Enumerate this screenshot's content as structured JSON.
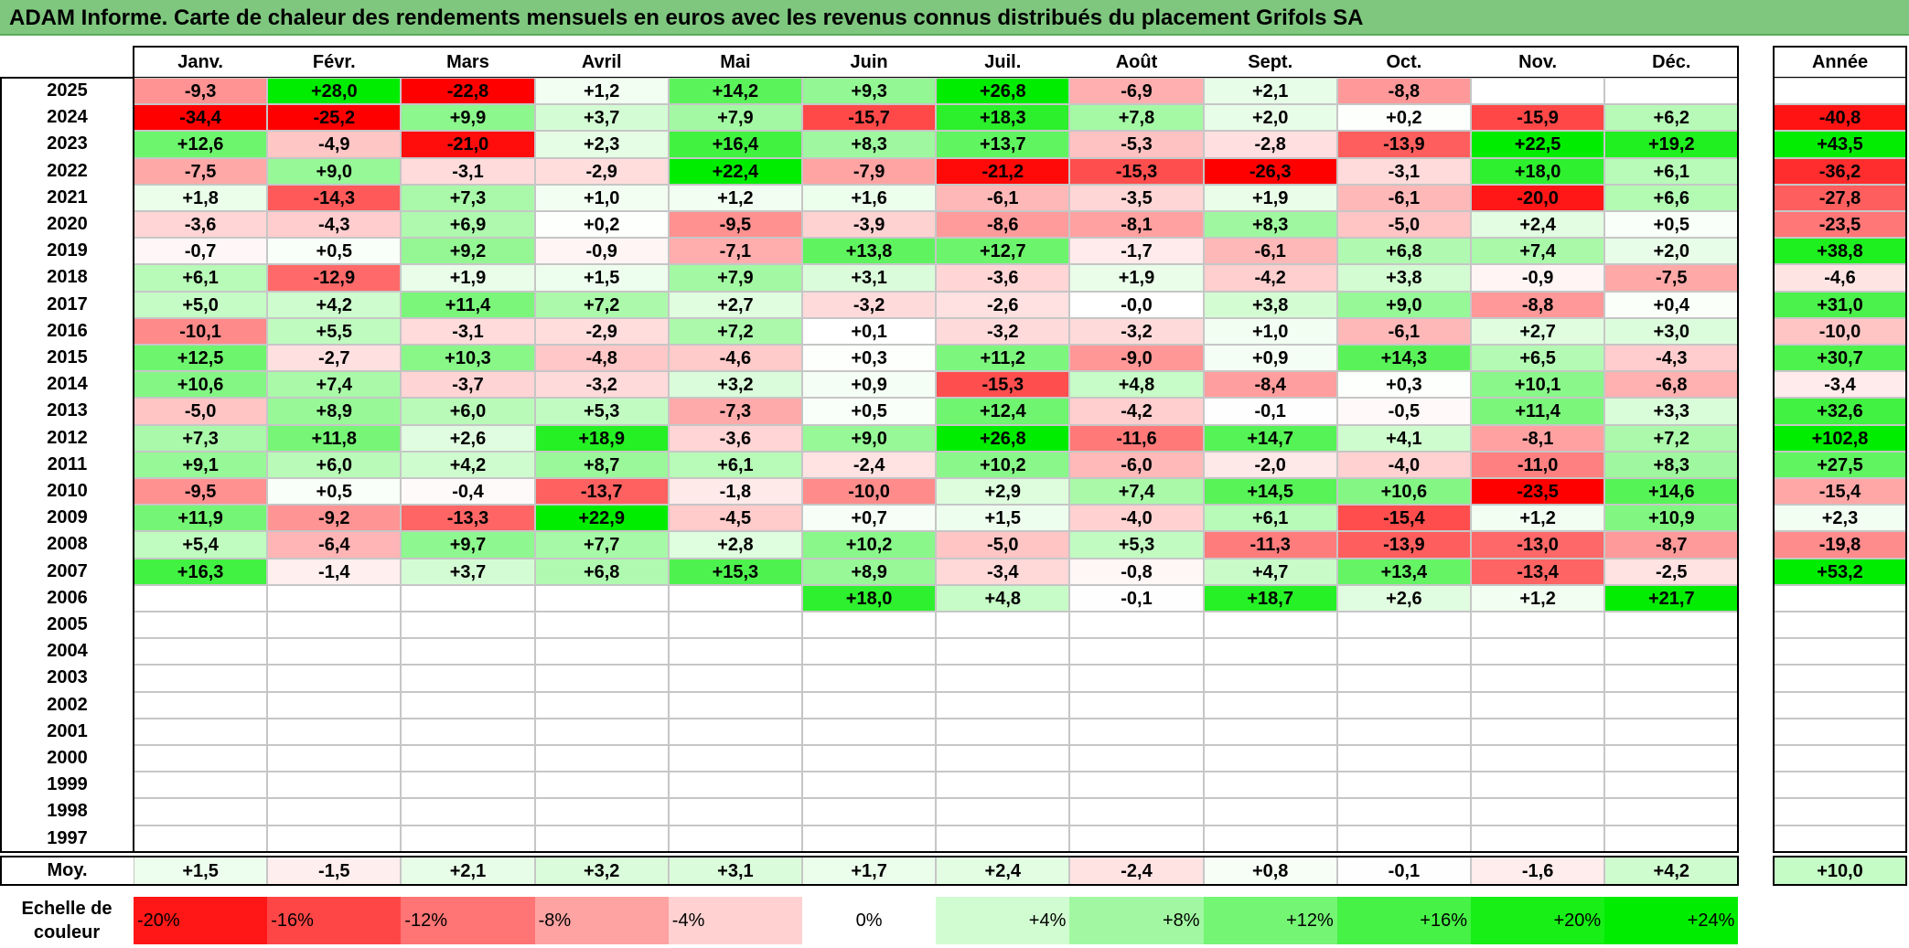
{
  "title": "ADAM Informe. Carte de chaleur des rendements mensuels en euros avec les revenus connus distribués du placement Grifols SA",
  "chart_data": {
    "type": "heatmap",
    "title": "ADAM Informe. Carte de chaleur des rendements mensuels en euros avec les revenus connus distribués du placement Grifols SA",
    "months": [
      "Janv.",
      "Févr.",
      "Mars",
      "Avril",
      "Mai",
      "Juin",
      "Juil.",
      "Août",
      "Sept.",
      "Oct.",
      "Nov.",
      "Déc."
    ],
    "year_header": "Année",
    "rows": [
      {
        "year": "2025",
        "values": [
          "-9,3",
          "+28,0",
          "-22,8",
          "+1,2",
          "+14,2",
          "+9,3",
          "+26,8",
          "-6,9",
          "+2,1",
          "-8,8",
          "",
          ""
        ],
        "annual": ""
      },
      {
        "year": "2024",
        "values": [
          "-34,4",
          "-25,2",
          "+9,9",
          "+3,7",
          "+7,9",
          "-15,7",
          "+18,3",
          "+7,8",
          "+2,0",
          "+0,2",
          "-15,9",
          "+6,2"
        ],
        "annual": "-40,8"
      },
      {
        "year": "2023",
        "values": [
          "+12,6",
          "-4,9",
          "-21,0",
          "+2,3",
          "+16,4",
          "+8,3",
          "+13,7",
          "-5,3",
          "-2,8",
          "-13,9",
          "+22,5",
          "+19,2"
        ],
        "annual": "+43,5"
      },
      {
        "year": "2022",
        "values": [
          "-7,5",
          "+9,0",
          "-3,1",
          "-2,9",
          "+22,4",
          "-7,9",
          "-21,2",
          "-15,3",
          "-26,3",
          "-3,1",
          "+18,0",
          "+6,1"
        ],
        "annual": "-36,2"
      },
      {
        "year": "2021",
        "values": [
          "+1,8",
          "-14,3",
          "+7,3",
          "+1,0",
          "+1,2",
          "+1,6",
          "-6,1",
          "-3,5",
          "+1,9",
          "-6,1",
          "-20,0",
          "+6,6"
        ],
        "annual": "-27,8"
      },
      {
        "year": "2020",
        "values": [
          "-3,6",
          "-4,3",
          "+6,9",
          "+0,2",
          "-9,5",
          "-3,9",
          "-8,6",
          "-8,1",
          "+8,3",
          "-5,0",
          "+2,4",
          "+0,5"
        ],
        "annual": "-23,5"
      },
      {
        "year": "2019",
        "values": [
          "-0,7",
          "+0,5",
          "+9,2",
          "-0,9",
          "-7,1",
          "+13,8",
          "+12,7",
          "-1,7",
          "-6,1",
          "+6,8",
          "+7,4",
          "+2,0"
        ],
        "annual": "+38,8"
      },
      {
        "year": "2018",
        "values": [
          "+6,1",
          "-12,9",
          "+1,9",
          "+1,5",
          "+7,9",
          "+3,1",
          "-3,6",
          "+1,9",
          "-4,2",
          "+3,8",
          "-0,9",
          "-7,5"
        ],
        "annual": "-4,6"
      },
      {
        "year": "2017",
        "values": [
          "+5,0",
          "+4,2",
          "+11,4",
          "+7,2",
          "+2,7",
          "-3,2",
          "-2,6",
          "-0,0",
          "+3,8",
          "+9,0",
          "-8,8",
          "+0,4"
        ],
        "annual": "+31,0"
      },
      {
        "year": "2016",
        "values": [
          "-10,1",
          "+5,5",
          "-3,1",
          "-2,9",
          "+7,2",
          "+0,1",
          "-3,2",
          "-3,2",
          "+1,0",
          "-6,1",
          "+2,7",
          "+3,0"
        ],
        "annual": "-10,0"
      },
      {
        "year": "2015",
        "values": [
          "+12,5",
          "-2,7",
          "+10,3",
          "-4,8",
          "-4,6",
          "+0,3",
          "+11,2",
          "-9,0",
          "+0,9",
          "+14,3",
          "+6,5",
          "-4,3"
        ],
        "annual": "+30,7"
      },
      {
        "year": "2014",
        "values": [
          "+10,6",
          "+7,4",
          "-3,7",
          "-3,2",
          "+3,2",
          "+0,9",
          "-15,3",
          "+4,8",
          "-8,4",
          "+0,3",
          "+10,1",
          "-6,8"
        ],
        "annual": "-3,4"
      },
      {
        "year": "2013",
        "values": [
          "-5,0",
          "+8,9",
          "+6,0",
          "+5,3",
          "-7,3",
          "+0,5",
          "+12,4",
          "-4,2",
          "-0,1",
          "-0,5",
          "+11,4",
          "+3,3"
        ],
        "annual": "+32,6"
      },
      {
        "year": "2012",
        "values": [
          "+7,3",
          "+11,8",
          "+2,6",
          "+18,9",
          "-3,6",
          "+9,0",
          "+26,8",
          "-11,6",
          "+14,7",
          "+4,1",
          "-8,1",
          "+7,2"
        ],
        "annual": "+102,8"
      },
      {
        "year": "2011",
        "values": [
          "+9,1",
          "+6,0",
          "+4,2",
          "+8,7",
          "+6,1",
          "-2,4",
          "+10,2",
          "-6,0",
          "-2,0",
          "-4,0",
          "-11,0",
          "+8,3"
        ],
        "annual": "+27,5"
      },
      {
        "year": "2010",
        "values": [
          "-9,5",
          "+0,5",
          "-0,4",
          "-13,7",
          "-1,8",
          "-10,0",
          "+2,9",
          "+7,4",
          "+14,5",
          "+10,6",
          "-23,5",
          "+14,6"
        ],
        "annual": "-15,4"
      },
      {
        "year": "2009",
        "values": [
          "+11,9",
          "-9,2",
          "-13,3",
          "+22,9",
          "-4,5",
          "+0,7",
          "+1,5",
          "-4,0",
          "+6,1",
          "-15,4",
          "+1,2",
          "+10,9"
        ],
        "annual": "+2,3"
      },
      {
        "year": "2008",
        "values": [
          "+5,4",
          "-6,4",
          "+9,7",
          "+7,7",
          "+2,8",
          "+10,2",
          "-5,0",
          "+5,3",
          "-11,3",
          "-13,9",
          "-13,0",
          "-8,7"
        ],
        "annual": "-19,8"
      },
      {
        "year": "2007",
        "values": [
          "+16,3",
          "-1,4",
          "+3,7",
          "+6,8",
          "+15,3",
          "+8,9",
          "-3,4",
          "-0,8",
          "+4,7",
          "+13,4",
          "-13,4",
          "-2,5"
        ],
        "annual": "+53,2"
      },
      {
        "year": "2006",
        "values": [
          "",
          "",
          "",
          "",
          "",
          "+18,0",
          "+4,8",
          "-0,1",
          "+18,7",
          "+2,6",
          "+1,2",
          "+21,7"
        ],
        "annual": ""
      },
      {
        "year": "2005",
        "values": [
          "",
          "",
          "",
          "",
          "",
          "",
          "",
          "",
          "",
          "",
          "",
          ""
        ],
        "annual": ""
      },
      {
        "year": "2004",
        "values": [
          "",
          "",
          "",
          "",
          "",
          "",
          "",
          "",
          "",
          "",
          "",
          ""
        ],
        "annual": ""
      },
      {
        "year": "2003",
        "values": [
          "",
          "",
          "",
          "",
          "",
          "",
          "",
          "",
          "",
          "",
          "",
          ""
        ],
        "annual": ""
      },
      {
        "year": "2002",
        "values": [
          "",
          "",
          "",
          "",
          "",
          "",
          "",
          "",
          "",
          "",
          "",
          ""
        ],
        "annual": ""
      },
      {
        "year": "2001",
        "values": [
          "",
          "",
          "",
          "",
          "",
          "",
          "",
          "",
          "",
          "",
          "",
          ""
        ],
        "annual": ""
      },
      {
        "year": "2000",
        "values": [
          "",
          "",
          "",
          "",
          "",
          "",
          "",
          "",
          "",
          "",
          "",
          ""
        ],
        "annual": ""
      },
      {
        "year": "1999",
        "values": [
          "",
          "",
          "",
          "",
          "",
          "",
          "",
          "",
          "",
          "",
          "",
          ""
        ],
        "annual": ""
      },
      {
        "year": "1998",
        "values": [
          "",
          "",
          "",
          "",
          "",
          "",
          "",
          "",
          "",
          "",
          "",
          ""
        ],
        "annual": ""
      },
      {
        "year": "1997",
        "values": [
          "",
          "",
          "",
          "",
          "",
          "",
          "",
          "",
          "",
          "",
          "",
          ""
        ],
        "annual": ""
      }
    ],
    "average_row": {
      "label": "Moy.",
      "values": [
        "+1,5",
        "-1,5",
        "+2,1",
        "+3,2",
        "+3,1",
        "+1,7",
        "+2,4",
        "-2,4",
        "+0,8",
        "-0,1",
        "-1,6",
        "+4,2"
      ],
      "annual": "+10,0"
    },
    "color_scale": {
      "label": "Echelle de couleur",
      "stops": [
        "-20%",
        "-16%",
        "-12%",
        "-8%",
        "-4%",
        "0%",
        "+4%",
        "+8%",
        "+12%",
        "+16%",
        "+20%",
        "+24%"
      ],
      "stop_values": [
        -20,
        -16,
        -12,
        -8,
        -4,
        0,
        4,
        8,
        12,
        16,
        20,
        24
      ],
      "negative_color": "#ff0000",
      "positive_color": "#00ee00",
      "neutral_color": "#ffffff"
    }
  }
}
